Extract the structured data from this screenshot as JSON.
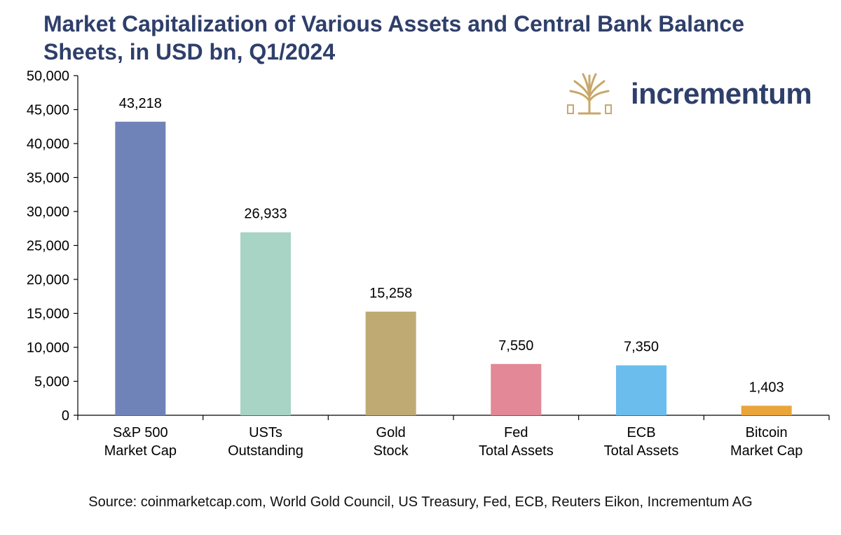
{
  "chart_data": {
    "type": "bar",
    "title": "Market Capitalization of Various Assets and Central Bank Balance Sheets, in USD bn, Q1/2024",
    "categories": [
      [
        "S&P 500",
        "Market Cap"
      ],
      [
        "USTs",
        "Outstanding"
      ],
      [
        "Gold",
        "Stock"
      ],
      [
        "Fed",
        "Total Assets"
      ],
      [
        "ECB",
        "Total Assets"
      ],
      [
        "Bitcoin",
        "Market Cap"
      ]
    ],
    "values": [
      43218,
      26933,
      15258,
      7550,
      7350,
      1403
    ],
    "value_labels": [
      "43,218",
      "26,933",
      "15,258",
      "7,550",
      "7,350",
      "1,403"
    ],
    "colors": [
      "#7083b9",
      "#a7d4c4",
      "#bfaa73",
      "#e28896",
      "#6bbdee",
      "#e9a53a"
    ],
    "yticks": [
      "0",
      "5,000",
      "10,000",
      "15,000",
      "20,000",
      "25,000",
      "30,000",
      "35,000",
      "40,000",
      "45,000",
      "50,000"
    ],
    "ylim": [
      0,
      50000
    ],
    "xlabel": "",
    "ylabel": ""
  },
  "source": "Source: coinmarketcap.com, World Gold Council, US Treasury, Fed, ECB, Reuters Eikon, Incrementum AG",
  "logo": {
    "text": "incrementum",
    "icon": "tree-icon",
    "icon_color": "#c8a86a"
  }
}
